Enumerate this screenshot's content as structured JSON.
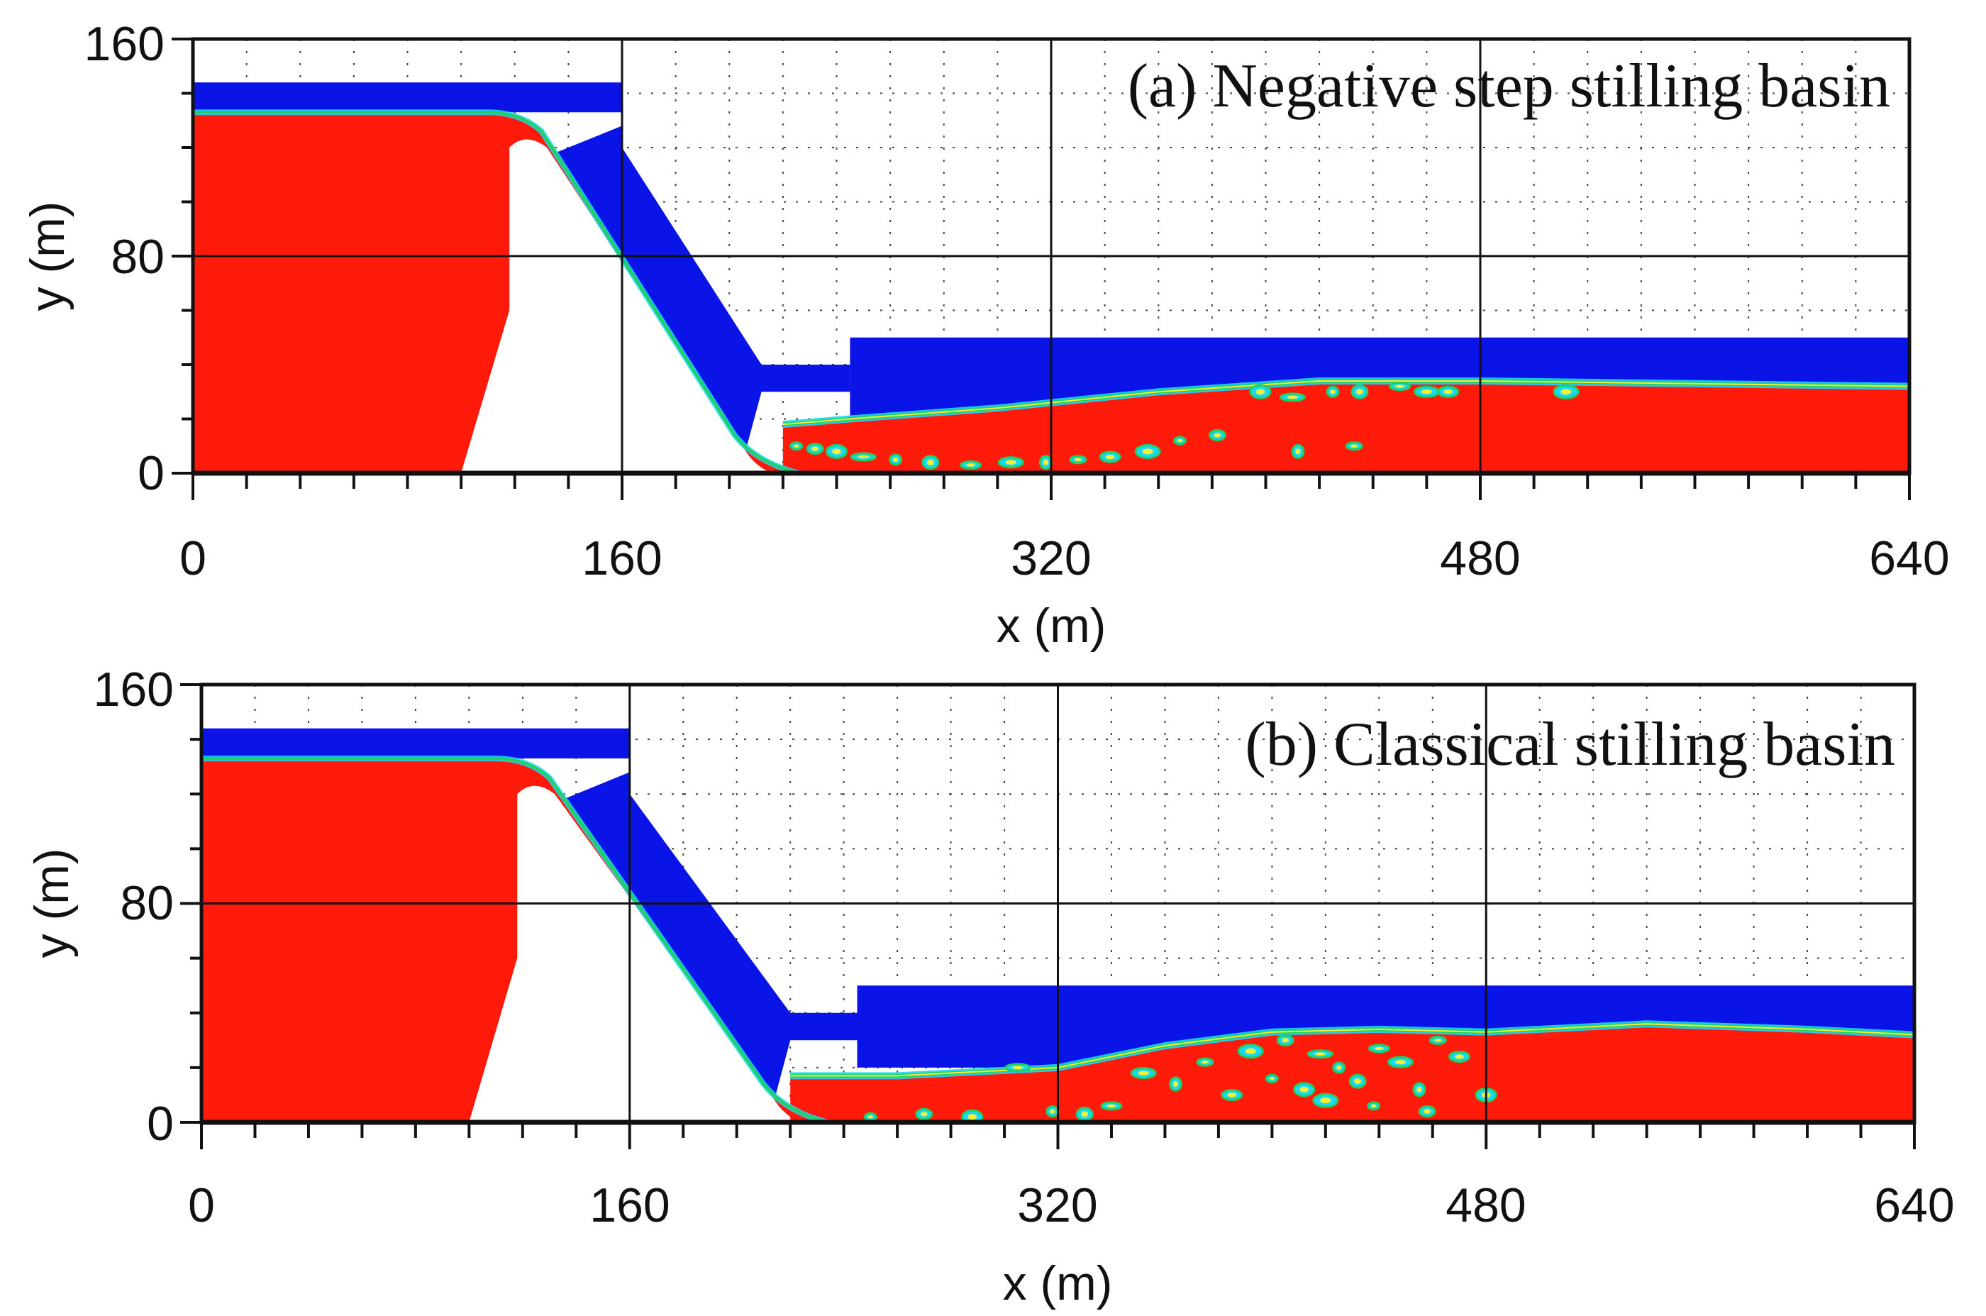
{
  "figure": {
    "description_free": true
  },
  "colors": {
    "water": "#ff1a0a",
    "air": "#0a14e6",
    "interface_green": "#22d060",
    "interface_cyan": "#18d8ff",
    "interface_yellow": "#f2f030",
    "frame": "#111111",
    "grid": "#444444"
  },
  "chart_data": [
    {
      "type": "contour",
      "title": "(a) Negative step stilling basin",
      "xlabel": "x (m)",
      "ylabel": "y (m)",
      "xlim": [
        0,
        640
      ],
      "ylim": [
        0,
        160
      ],
      "x_ticks": [
        "0",
        "160",
        "320",
        "480",
        "640"
      ],
      "y_ticks": [
        "0",
        "80",
        "160"
      ],
      "x_tick_values": [
        0,
        160,
        320,
        480,
        640
      ],
      "y_tick_values": [
        0,
        80,
        160
      ],
      "minor_x_step": 20,
      "minor_y_step": 20,
      "reservoir_level": 144,
      "spillway_crest": 133,
      "dam_face_x": 118,
      "dam_toe_x": 100,
      "chute": [
        [
          160,
          120
        ],
        [
          212,
          40
        ]
      ],
      "basin_entry_x": 220,
      "step_x": 245,
      "step_top": 40,
      "tailwater_level": 50,
      "jump_profile": [
        [
          220,
          18
        ],
        [
          245,
          20
        ],
        [
          300,
          24
        ],
        [
          360,
          30
        ],
        [
          420,
          34
        ],
        [
          480,
          34
        ],
        [
          560,
          33
        ],
        [
          640,
          32
        ]
      ],
      "bubbles": [
        [
          225,
          10
        ],
        [
          232,
          9
        ],
        [
          240,
          8
        ],
        [
          250,
          6
        ],
        [
          262,
          5
        ],
        [
          275,
          4
        ],
        [
          290,
          3
        ],
        [
          305,
          4
        ],
        [
          318,
          4
        ],
        [
          330,
          5
        ],
        [
          342,
          6
        ],
        [
          356,
          8
        ],
        [
          368,
          12
        ],
        [
          382,
          14
        ],
        [
          398,
          30
        ],
        [
          410,
          28
        ],
        [
          425,
          30
        ],
        [
          435,
          30
        ],
        [
          450,
          32
        ],
        [
          460,
          30
        ],
        [
          412,
          8
        ],
        [
          433,
          10
        ],
        [
          468,
          30
        ],
        [
          512,
          30
        ]
      ]
    },
    {
      "type": "contour",
      "title": "(b) Classical stilling basin",
      "xlabel": "x (m)",
      "ylabel": "y (m)",
      "xlim": [
        0,
        640
      ],
      "ylim": [
        0,
        160
      ],
      "x_ticks": [
        "0",
        "160",
        "320",
        "480",
        "640"
      ],
      "y_ticks": [
        "0",
        "80",
        "160"
      ],
      "x_tick_values": [
        0,
        160,
        320,
        480,
        640
      ],
      "y_tick_values": [
        0,
        80,
        160
      ],
      "minor_x_step": 20,
      "minor_y_step": 20,
      "reservoir_level": 144,
      "spillway_crest": 133,
      "dam_face_x": 118,
      "dam_toe_x": 100,
      "chute": [
        [
          160,
          120
        ],
        [
          220,
          40
        ]
      ],
      "basin_entry_x": 220,
      "step_x": 245,
      "step_top": 40,
      "tailwater_level": 50,
      "jump_profile": [
        [
          220,
          17
        ],
        [
          260,
          17
        ],
        [
          320,
          20
        ],
        [
          360,
          28
        ],
        [
          400,
          33
        ],
        [
          440,
          34
        ],
        [
          480,
          33
        ],
        [
          540,
          36
        ],
        [
          600,
          34
        ],
        [
          640,
          32
        ]
      ],
      "bubbles": [
        [
          250,
          2
        ],
        [
          270,
          3
        ],
        [
          288,
          2
        ],
        [
          305,
          20
        ],
        [
          318,
          4
        ],
        [
          330,
          3
        ],
        [
          340,
          6
        ],
        [
          352,
          18
        ],
        [
          364,
          14
        ],
        [
          375,
          22
        ],
        [
          385,
          10
        ],
        [
          392,
          26
        ],
        [
          400,
          16
        ],
        [
          405,
          30
        ],
        [
          412,
          12
        ],
        [
          418,
          25
        ],
        [
          425,
          20
        ],
        [
          432,
          15
        ],
        [
          440,
          27
        ],
        [
          448,
          22
        ],
        [
          455,
          12
        ],
        [
          462,
          30
        ],
        [
          470,
          24
        ],
        [
          420,
          8
        ],
        [
          438,
          6
        ],
        [
          458,
          4
        ],
        [
          480,
          10
        ]
      ]
    }
  ]
}
